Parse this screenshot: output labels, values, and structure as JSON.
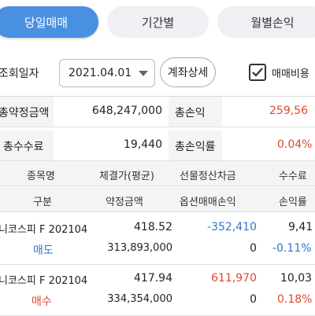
{
  "tabs": [
    {
      "label": "당일매매",
      "active": true
    },
    {
      "label": "기간별",
      "active": false
    },
    {
      "label": "월별손익",
      "active": false
    }
  ],
  "filter": {
    "query_date_label": "조회일자",
    "date_value": "2021.04.01",
    "account_detail_button": "계좌상세",
    "fee_checkbox_label": "매매비용",
    "fee_checkbox_checked": true
  },
  "summary": {
    "total_contract_label": "총약정금액",
    "total_contract_value": "648,247,000",
    "total_pnl_label": "총손익",
    "total_pnl_value": "259,56",
    "total_fee_label": "총수수료",
    "total_fee_value": "19,440",
    "total_return_label": "총손익률",
    "total_return_value": "0.04%"
  },
  "table": {
    "headers_row1": [
      "종목명",
      "체결가(평균)",
      "선물정산차금",
      "수수료"
    ],
    "headers_row2": [
      "구분",
      "약정금액",
      "옵션매매손익",
      "손익률"
    ],
    "rows": [
      {
        "name": "니코스피 F 202104",
        "price": "418.52",
        "futures_settlement": "-352,410",
        "fee": "9,41",
        "side": "매도",
        "amount": "313,893,000",
        "option_pnl": "0",
        "return": "-0.11%"
      },
      {
        "name": "니코스피 F 202104",
        "price": "417.94",
        "futures_settlement": "611,970",
        "fee": "10,03",
        "side": "매수",
        "amount": "334,354,000",
        "option_pnl": "0",
        "return": "0.18%"
      }
    ]
  },
  "colors": {
    "accent": "#4a90e2",
    "positive": "#e0492f",
    "negative": "#2e74d4"
  }
}
